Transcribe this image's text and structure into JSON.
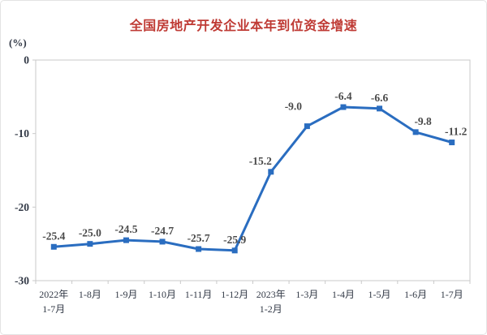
{
  "page": {
    "background": "#ffffff",
    "border_color": "#e3e3e3"
  },
  "chart_data": {
    "type": "line",
    "title": "全国房地产开发企业本年到位资金增速",
    "unit_label": "(%)",
    "categories": [
      "2022年\n1-7月",
      "1-8月",
      "1-9月",
      "1-10月",
      "1-11月",
      "1-12月",
      "2023年\n1-2月",
      "1-3月",
      "1-4月",
      "1-5月",
      "1-6月",
      "1-7月"
    ],
    "values": [
      -25.4,
      -25.0,
      -24.5,
      -24.7,
      -25.7,
      -25.9,
      -15.2,
      -9.0,
      -6.4,
      -6.6,
      -9.8,
      -11.2
    ],
    "data_labels": [
      "-25.4",
      "-25.0",
      "-24.5",
      "-24.7",
      "-25.7",
      "-25.9",
      "-15.2",
      "-9.0",
      "-6.4",
      "-6.6",
      "-9.8",
      "-11.2"
    ],
    "y_ticks": [
      0,
      -10,
      -20,
      -30
    ],
    "ylim": [
      -30,
      0
    ],
    "grid": false,
    "legend": "none",
    "marker": "square",
    "colors": {
      "line": "#2a6dc0",
      "marker": "#2a6dc0",
      "title": "#bf3a34",
      "axis_text": "#333a47",
      "data_label": "#4a4a4a",
      "plot_border": "#c9c9c9"
    }
  }
}
